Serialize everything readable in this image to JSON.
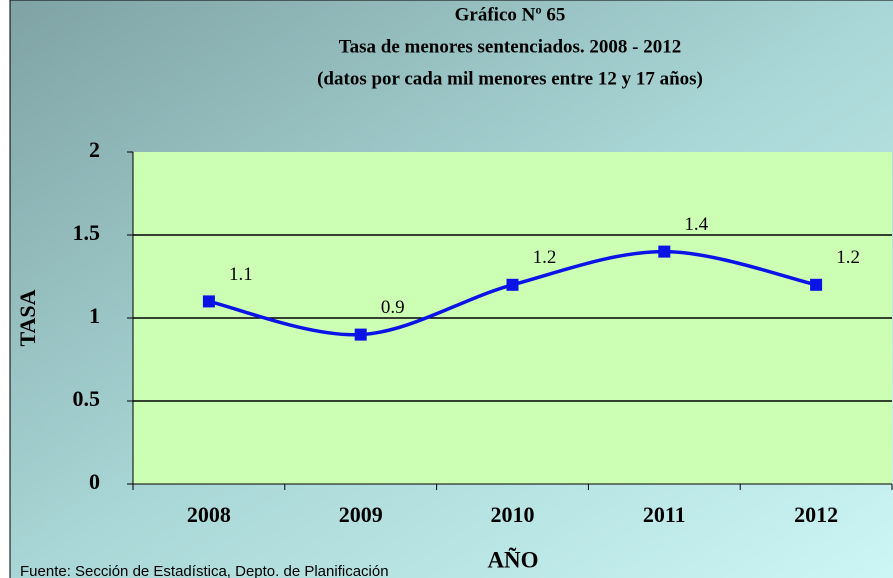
{
  "chart_data": {
    "type": "line",
    "title": "Gráfico Nº 65",
    "subtitle": [
      "Tasa de menores sentenciados. 2008 - 2012",
      "(datos por cada mil menores entre 12 y 17 años)"
    ],
    "x_label": "AÑO",
    "y_label": "TASA",
    "source": "Fuente: Sección de Estadística, Depto. de Planificación",
    "categories": [
      "2008",
      "2009",
      "2010",
      "2011",
      "2012"
    ],
    "series": [
      {
        "name": "Tasa",
        "color": "#0a14e6",
        "values": [
          1.1,
          0.9,
          1.2,
          1.4,
          1.2
        ]
      }
    ],
    "ylim": [
      0,
      2
    ],
    "yticks": [
      0,
      0.5,
      1,
      1.5,
      2
    ],
    "grid": true,
    "smooth": true
  }
}
